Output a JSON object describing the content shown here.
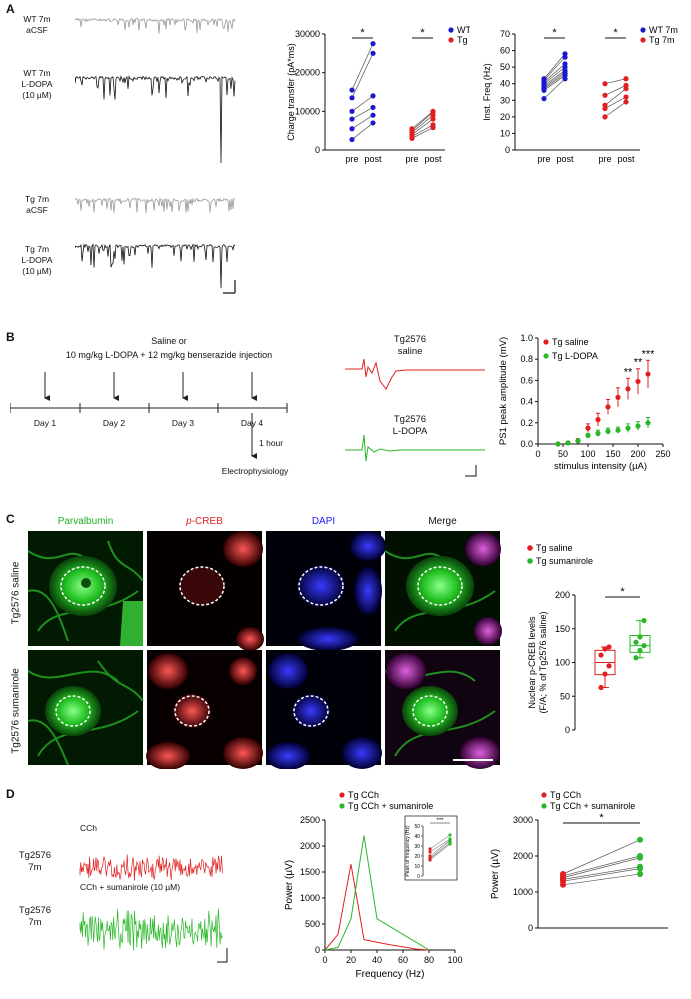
{
  "panels": {
    "A": {
      "label": "A",
      "traces": [
        {
          "line1": "WT 7m",
          "line2": "aCSF",
          "line3": "",
          "color": "#9a9a9a"
        },
        {
          "line1": "WT 7m",
          "line2": "L-DOPA",
          "line3": "(10 µM)",
          "color": "#111111"
        },
        {
          "line1": "Tg 7m",
          "line2": "aCSF",
          "line3": "",
          "color": "#9a9a9a"
        },
        {
          "line1": "Tg 7m",
          "line2": "L-DOPA",
          "line3": "(10 µM)",
          "color": "#111111"
        }
      ],
      "sig": "*"
    },
    "B": {
      "label": "B",
      "protocol_title": [
        "Saline or",
        "10 mg/kg L-DOPA + 12 mg/kg benserazide injection"
      ],
      "days": [
        "Day 1",
        "Day 2",
        "Day 3",
        "Day 4"
      ],
      "after": "1 hour",
      "endpoint": "Electrophysiology",
      "trace_saline": [
        "Tg2576",
        "saline"
      ],
      "trace_ldopa": [
        "Tg2576",
        "L-DOPA"
      ]
    },
    "C": {
      "label": "C",
      "channels": [
        {
          "name": "Parvalbumin",
          "italic_prefix": "",
          "color": "#1fb01f"
        },
        {
          "name": "-CREB",
          "italic_prefix": "p",
          "color": "#e02020"
        },
        {
          "name": "DAPI",
          "italic_prefix": "",
          "color": "#1a1aff"
        },
        {
          "name": "Merge",
          "italic_prefix": "",
          "color": "#111111"
        }
      ],
      "rows": [
        "Tg2576 saline",
        "Tg2576 sumanirole"
      ]
    },
    "D": {
      "label": "D",
      "trace_labels": [
        "CCh",
        "CCh + sumanirole (10 µM)"
      ],
      "animal": [
        "Tg2576",
        "7m"
      ]
    }
  },
  "chart_data": [
    {
      "type": "scatter",
      "ylabel": "Charge transfer (pA*ms)",
      "ylim": [
        0,
        30000
      ],
      "yticks": [
        0,
        10000,
        20000,
        30000
      ],
      "categories": [
        "pre",
        "post",
        "pre",
        "post"
      ],
      "legend": [
        "WT 7m",
        "Tg 7m"
      ],
      "legend_position": "top-right",
      "series": [
        {
          "name": "WT 7m",
          "color": "#1a1acc",
          "pre": [
            15500,
            13500,
            10000,
            8000,
            5500,
            2700
          ],
          "post": [
            27500,
            25000,
            14000,
            11000,
            9000,
            7000
          ]
        },
        {
          "name": "Tg 7m",
          "color": "#e02020",
          "pre": [
            5500,
            5000,
            4500,
            4000,
            3500,
            3000
          ],
          "post": [
            10000,
            9800,
            9000,
            8000,
            6500,
            5800
          ]
        }
      ],
      "significance": [
        "*",
        "*"
      ]
    },
    {
      "type": "scatter",
      "ylabel": "Inst. Freq (Hz)",
      "ylim": [
        0,
        70
      ],
      "yticks": [
        0,
        10,
        20,
        30,
        40,
        50,
        60,
        70
      ],
      "categories": [
        "pre",
        "post",
        "pre",
        "post"
      ],
      "legend": [
        "WT 7m",
        "Tg 7m"
      ],
      "legend_position": "top-right",
      "series": [
        {
          "name": "WT 7m",
          "color": "#1a1acc",
          "pre": [
            43,
            42,
            41,
            40,
            39,
            38,
            37,
            36,
            31
          ],
          "post": [
            58,
            56,
            52,
            50,
            48,
            47,
            46,
            45,
            43
          ]
        },
        {
          "name": "Tg 7m",
          "color": "#e02020",
          "pre": [
            40,
            33,
            27,
            25,
            20
          ],
          "post": [
            43,
            39,
            37,
            32,
            29
          ]
        }
      ],
      "significance": [
        "*",
        "*"
      ]
    },
    {
      "type": "line",
      "xlabel": "stimulus intensity (µA)",
      "ylabel": "PS1 peak amplitude (mV)",
      "xlim": [
        0,
        250
      ],
      "ylim": [
        0,
        1.0
      ],
      "xticks": [
        0,
        50,
        100,
        150,
        200,
        250
      ],
      "yticks": [
        0,
        0.2,
        0.4,
        0.6,
        0.8,
        1.0
      ],
      "legend": [
        "Tg saline",
        "Tg L-DOPA"
      ],
      "legend_position": "top-left",
      "x": [
        40,
        60,
        80,
        100,
        120,
        140,
        160,
        180,
        200,
        220
      ],
      "series": [
        {
          "name": "Tg saline",
          "color": "#e02020",
          "values": [
            0.0,
            0.01,
            0.03,
            0.15,
            0.23,
            0.35,
            0.44,
            0.52,
            0.59,
            0.66
          ],
          "err": [
            0,
            0.01,
            0.02,
            0.04,
            0.06,
            0.07,
            0.09,
            0.1,
            0.12,
            0.13
          ]
        },
        {
          "name": "Tg L-DOPA",
          "color": "#2ab82a",
          "values": [
            0.0,
            0.01,
            0.03,
            0.08,
            0.1,
            0.12,
            0.13,
            0.15,
            0.17,
            0.2
          ],
          "err": [
            0,
            0.01,
            0.01,
            0.02,
            0.03,
            0.03,
            0.03,
            0.04,
            0.04,
            0.05
          ]
        }
      ],
      "annotations": [
        {
          "x": 180,
          "text": "**"
        },
        {
          "x": 200,
          "text": "**"
        },
        {
          "x": 220,
          "text": "***"
        }
      ]
    },
    {
      "type": "box",
      "ylabel": "Nuclear p-CREB levels (F/A; % of Tg2576 saline)",
      "ylim": [
        0,
        200
      ],
      "yticks": [
        0,
        50,
        100,
        150,
        200
      ],
      "legend": [
        "Tg saline",
        "Tg sumanirole"
      ],
      "legend_position": "top-left",
      "series": [
        {
          "name": "Tg saline",
          "color": "#e02020",
          "values": [
            63,
            83,
            95,
            111,
            120,
            123
          ],
          "q1": 82,
          "median": 100,
          "q3": 118,
          "min": 63,
          "max": 123
        },
        {
          "name": "Tg sumanirole",
          "color": "#2ab82a",
          "values": [
            107,
            118,
            125,
            130,
            138,
            162
          ],
          "q1": 115,
          "median": 125,
          "q3": 140,
          "min": 107,
          "max": 162
        }
      ],
      "significance": "*"
    },
    {
      "type": "line",
      "xlabel": "Frequency (Hz)",
      "ylabel": "Power (µV)",
      "xlim": [
        0,
        100
      ],
      "ylim": [
        0,
        2500
      ],
      "xticks": [
        0,
        20,
        40,
        60,
        80,
        100
      ],
      "yticks": [
        0,
        500,
        1000,
        1500,
        2000,
        2500
      ],
      "legend": [
        "Tg CCh",
        "Tg CCh + sumanirole"
      ],
      "legend_position": "top",
      "series": [
        {
          "name": "Tg CCh",
          "color": "#e02020",
          "x": [
            0,
            10,
            20,
            30,
            40,
            50,
            60,
            70,
            80
          ],
          "values": [
            0,
            300,
            1650,
            200,
            150,
            100,
            60,
            20,
            0
          ]
        },
        {
          "name": "Tg CCh + sumanirole",
          "color": "#2ab82a",
          "x": [
            0,
            10,
            20,
            30,
            40,
            50,
            60,
            70,
            80
          ],
          "values": [
            0,
            50,
            600,
            2200,
            600,
            450,
            300,
            150,
            0
          ]
        }
      ],
      "inset": {
        "ylabel": "Peak of frequency (Hz)",
        "ylim": [
          0,
          50
        ],
        "yticks": [
          0,
          10,
          20,
          30,
          40,
          50
        ],
        "significance": "***",
        "pre": [
          27,
          24,
          20,
          18,
          17,
          16
        ],
        "post": [
          41,
          37,
          36,
          35,
          33,
          32
        ]
      }
    },
    {
      "type": "scatter",
      "ylabel": "Power (µV)",
      "ylim": [
        0,
        3000
      ],
      "yticks": [
        0,
        1000,
        2000,
        3000
      ],
      "legend": [
        "Tg CCh",
        "Tg CCh + sumanirole"
      ],
      "legend_position": "top-left",
      "series": [
        {
          "name": "Tg CCh",
          "color": "#e02020",
          "values": [
            1500,
            1450,
            1400,
            1350,
            1300,
            1200
          ]
        },
        {
          "name": "Tg CCh + sumanirole",
          "color": "#2ab82a",
          "values": [
            2450,
            2000,
            1950,
            1700,
            1650,
            1500
          ]
        }
      ],
      "significance": "*"
    }
  ]
}
